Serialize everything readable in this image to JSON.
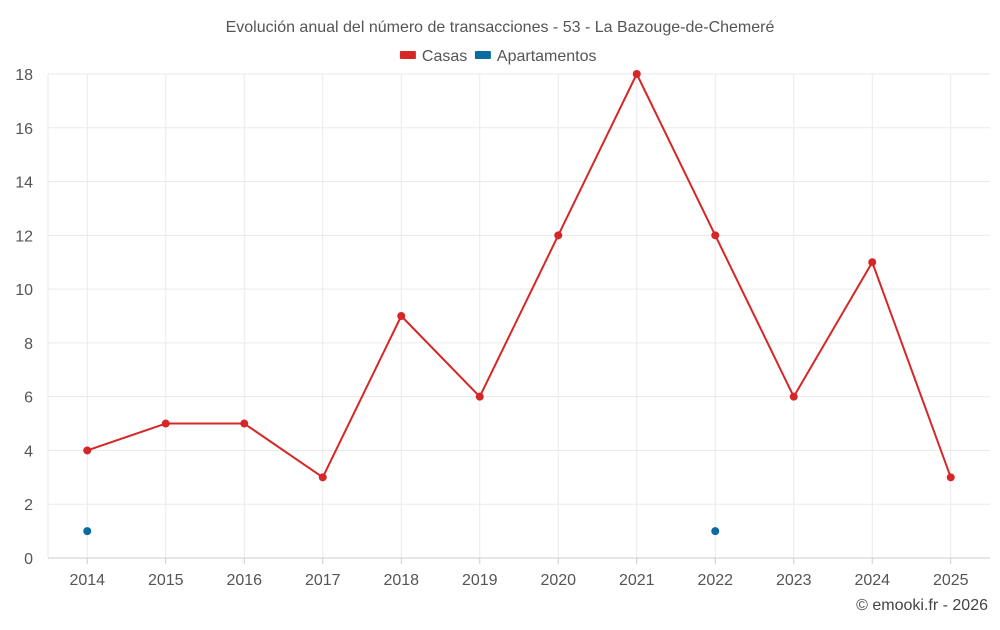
{
  "chart_data": {
    "type": "line",
    "title": "Evolución anual del número de transacciones - 53 - La Bazouge-de-Chemeré",
    "categories": [
      "2014",
      "2015",
      "2016",
      "2017",
      "2018",
      "2019",
      "2020",
      "2021",
      "2022",
      "2023",
      "2024",
      "2025"
    ],
    "ylim": [
      0,
      18
    ],
    "yticks": [
      0,
      2,
      4,
      6,
      8,
      10,
      12,
      14,
      16,
      18
    ],
    "grid": true,
    "legend_position": "top-center",
    "series": [
      {
        "name": "Casas",
        "color": "#d62728",
        "values": [
          4,
          5,
          5,
          3,
          9,
          6,
          12,
          18,
          12,
          6,
          11,
          3
        ],
        "line": true
      },
      {
        "name": "Apartamentos",
        "color": "#0b6aa2",
        "values": [
          1,
          null,
          null,
          null,
          null,
          null,
          null,
          null,
          1,
          null,
          null,
          null
        ],
        "line": false
      }
    ]
  },
  "credit": "© emooki.fr - 2026"
}
